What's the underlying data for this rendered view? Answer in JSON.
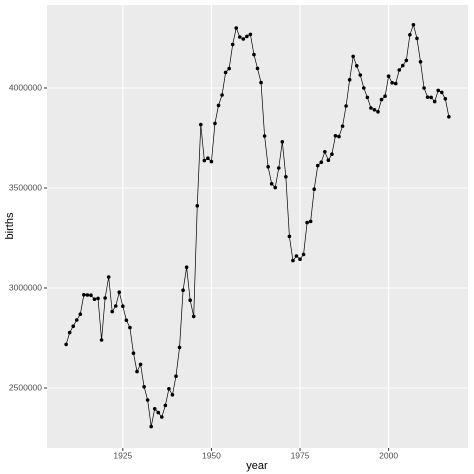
{
  "chart_data": {
    "type": "line",
    "x_label": "year",
    "y_label": "births",
    "x": [
      1909,
      1910,
      1911,
      1912,
      1913,
      1914,
      1915,
      1916,
      1917,
      1918,
      1919,
      1920,
      1921,
      1922,
      1923,
      1924,
      1925,
      1926,
      1927,
      1928,
      1929,
      1930,
      1931,
      1932,
      1933,
      1934,
      1935,
      1936,
      1937,
      1938,
      1939,
      1940,
      1941,
      1942,
      1943,
      1944,
      1945,
      1946,
      1947,
      1948,
      1949,
      1950,
      1951,
      1952,
      1953,
      1954,
      1955,
      1956,
      1957,
      1958,
      1959,
      1960,
      1961,
      1962,
      1963,
      1964,
      1965,
      1966,
      1967,
      1968,
      1969,
      1970,
      1971,
      1972,
      1973,
      1974,
      1975,
      1976,
      1977,
      1978,
      1979,
      1980,
      1981,
      1982,
      1983,
      1984,
      1985,
      1986,
      1987,
      1988,
      1989,
      1990,
      1991,
      1992,
      1993,
      1994,
      1995,
      1996,
      1997,
      1998,
      1999,
      2000,
      2001,
      2002,
      2003,
      2004,
      2005,
      2006,
      2007,
      2008,
      2009,
      2010,
      2011,
      2012,
      2013,
      2014,
      2015,
      2016,
      2017
    ],
    "series": [
      {
        "name": "births",
        "color": "#000000",
        "values": [
          2718000,
          2777000,
          2809000,
          2840000,
          2869000,
          2966000,
          2965000,
          2964000,
          2944000,
          2948000,
          2740000,
          2950000,
          3055000,
          2882000,
          2910000,
          2979000,
          2909000,
          2839000,
          2802000,
          2674000,
          2582000,
          2618000,
          2506000,
          2440000,
          2307000,
          2396000,
          2377000,
          2355000,
          2413000,
          2496000,
          2466000,
          2559000,
          2703000,
          2989000,
          3104000,
          2939000,
          2858000,
          3411000,
          3817000,
          3637000,
          3649000,
          3632000,
          3823000,
          3913000,
          3965000,
          4078000,
          4097000,
          4218000,
          4300000,
          4255000,
          4245000,
          4258000,
          4268000,
          4167000,
          4098000,
          4027000,
          3760000,
          3606000,
          3521000,
          3502000,
          3600000,
          3731000,
          3556000,
          3258000,
          3137000,
          3160000,
          3144000,
          3168000,
          3327000,
          3333000,
          3494000,
          3612000,
          3629000,
          3681000,
          3639000,
          3669000,
          3761000,
          3757000,
          3809000,
          3910000,
          4041000,
          4158000,
          4111000,
          4065000,
          4000000,
          3953000,
          3900000,
          3891000,
          3881000,
          3942000,
          3959000,
          4059000,
          4026000,
          4022000,
          4090000,
          4112000,
          4138000,
          4266000,
          4316000,
          4248000,
          4131000,
          4000000,
          3954000,
          3953000,
          3932000,
          3988000,
          3978000,
          3946000,
          3856000
        ]
      }
    ],
    "xlim": [
      1903.6,
      2022.4
    ],
    "xticks": [
      1925,
      1950,
      1975,
      2000
    ],
    "ylim": [
      2200000,
      4415000
    ],
    "yticks": [
      2500000,
      3000000,
      3500000,
      4000000
    ],
    "grid": true
  }
}
